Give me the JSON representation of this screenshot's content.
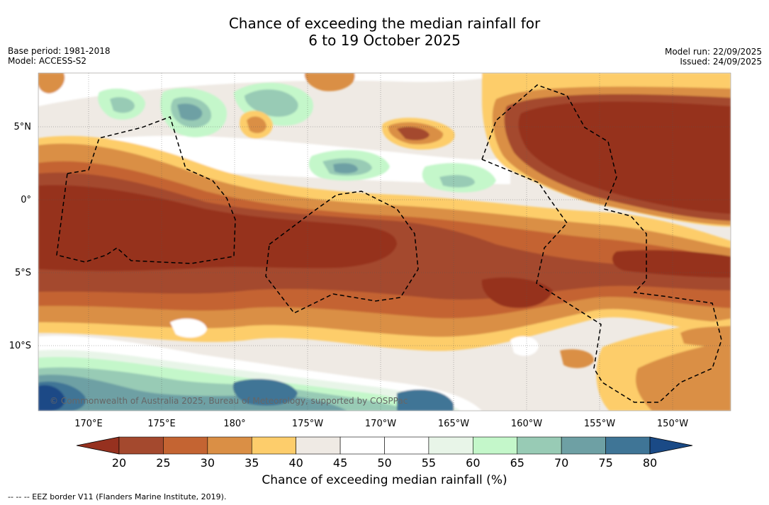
{
  "title": {
    "line1": "Chance of exceeding the median rainfall for",
    "line2": "6 to 19 October 2025"
  },
  "meta": {
    "base_period": "Base period: 1981-2018",
    "model": "Model: ACCESS-S2",
    "model_run": "Model run: 22/09/2025",
    "issued": "Issued: 24/09/2025"
  },
  "axes": {
    "lat_labels": [
      "5°N",
      "0°",
      "5°S",
      "10°S"
    ],
    "lon_labels": [
      "170°E",
      "175°E",
      "180°",
      "175°W",
      "170°W",
      "165°W",
      "160°W",
      "155°W",
      "150°W"
    ]
  },
  "credit": "© Commonwealth of Australia 2025, Bureau of Meteorology, supported by COSPPac",
  "colorbar": {
    "ticks": [
      "20",
      "25",
      "30",
      "35",
      "40",
      "45",
      "50",
      "55",
      "60",
      "65",
      "70",
      "75",
      "80"
    ],
    "colors": [
      "#a4492e",
      "#c46432",
      "#da8f45",
      "#fdcd6b",
      "#efeae4",
      "#ffffff",
      "#ffffff",
      "#e8f5e8",
      "#c4f7ca",
      "#98cbb5",
      "#6ea0a4",
      "#3f7596"
    ],
    "low_color": "#96311f",
    "high_color": "#1a4a86",
    "title": "Chance of exceeding median rainfall (%)"
  },
  "footnote": "--  --  -- EEZ border V11 (Flanders Marine Institute, 2019)."
}
